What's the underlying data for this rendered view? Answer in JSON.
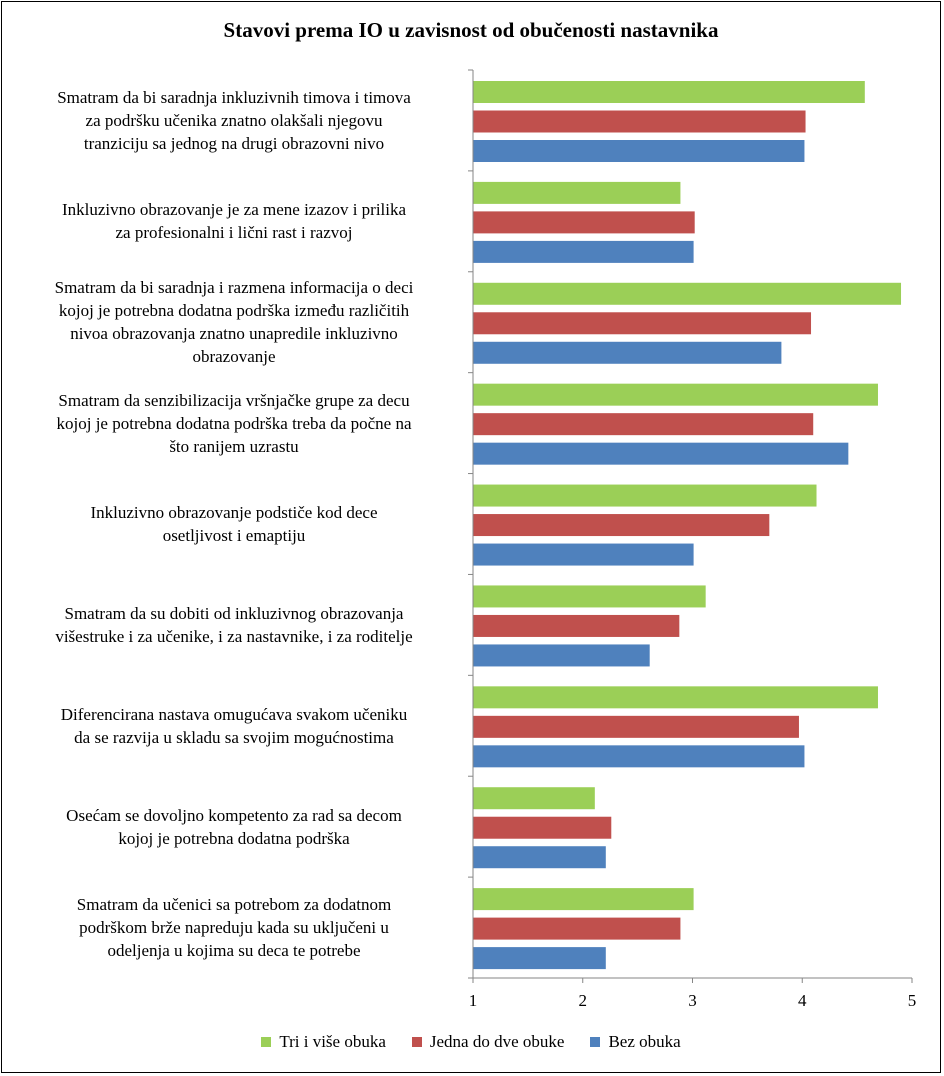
{
  "chart_data": {
    "type": "bar",
    "orientation": "horizontal",
    "title": "Stavovi prema IO u zavisnost od obučenosti nastavnika",
    "categories": [
      "Smatram da bi saradnja inkluzivnih timova i timova za podršku učenika znatno olakšali njegovu tranziciju sa jednog na drugi obrazovni nivo",
      "Inkluzivno obrazovanje je za mene izazov i prilika za profesionalni i lični rast i razvoj",
      "Smatram da bi saradnja i razmena informacija o deci kojoj je potrebna dodatna podrška između različitih nivoa obrazovanja znatno unapredile inkluzivno obrazovanje",
      "Smatram da senzibilizacija vršnjačke grupe za decu kojoj je potrebna dodatna podrška treba da počne na što ranijem uzrastu",
      "Inkluzivno obrazovanje podstiče kod dece osetljivost i emaptiju",
      "Smatram da su dobiti od inkluzivnog obrazovanja višestruke i za učenike, i za nastavnike, i za roditelje",
      "Diferencirana nastava omugućava svakom učeniku da se razvija u skladu sa svojim mogućnostima",
      "Osećam se dovoljno kompetento za rad sa decom kojoj je potrebna dodatna podrška",
      "Smatram da učenici sa potrebom za dodatnom podrškom brže napreduju kada su uključeni u odeljenja u kojima su deca te potrebe"
    ],
    "category_lines": [
      [
        "Smatram da bi saradnja inkluzivnih timova i timova",
        "za podršku učenika znatno olakšali njegovu",
        "tranziciju sa jednog na drugi obrazovni nivo"
      ],
      [
        "Inkluzivno obrazovanje je za mene izazov i prilika",
        "za profesionalni i lični rast i razvoj"
      ],
      [
        "Smatram da bi saradnja i razmena informacija o deci",
        "kojoj je potrebna dodatna podrška između različitih",
        "nivoa obrazovanja znatno unapredile inkluzivno",
        "obrazovanje"
      ],
      [
        "Smatram da senzibilizacija vršnjačke grupe za decu",
        "kojoj je potrebna dodatna podrška treba da počne na",
        "što ranijem uzrastu"
      ],
      [
        "Inkluzivno obrazovanje podstiče kod dece",
        "osetljivost i emaptiju"
      ],
      [
        "Smatram da su dobiti od inkluzivnog obrazovanja",
        "višestruke i za učenike, i za nastavnike, i za roditelje"
      ],
      [
        "Diferencirana nastava omugućava svakom učeniku",
        "da se razvija u skladu sa svojim mogućnostima"
      ],
      [
        "Osećam se dovoljno kompetento za rad sa decom",
        "kojoj je potrebna dodatna podrška"
      ],
      [
        "Smatram da učenici sa potrebom za dodatnom",
        "podrškom brže napreduju kada su uključeni u",
        "odeljenja u kojima su deca te potrebe"
      ]
    ],
    "series": [
      {
        "name": "Tri i više obuka",
        "color": "#9BCF57",
        "values": [
          4.57,
          2.89,
          4.9,
          4.69,
          4.13,
          3.12,
          4.69,
          2.11,
          3.01
        ]
      },
      {
        "name": "Jedna do dve obuke",
        "color": "#C0504D",
        "values": [
          4.03,
          3.02,
          4.08,
          4.1,
          3.7,
          2.88,
          3.97,
          2.26,
          2.89
        ]
      },
      {
        "name": "Bez obuka",
        "color": "#4F81BD",
        "values": [
          4.02,
          3.01,
          3.81,
          4.42,
          3.01,
          2.61,
          4.02,
          2.21,
          2.21
        ]
      }
    ],
    "xlim": [
      1,
      5
    ],
    "x_ticks": [
      "1",
      "2",
      "3",
      "4",
      "5"
    ],
    "grid": false,
    "legend_position": "bottom"
  }
}
